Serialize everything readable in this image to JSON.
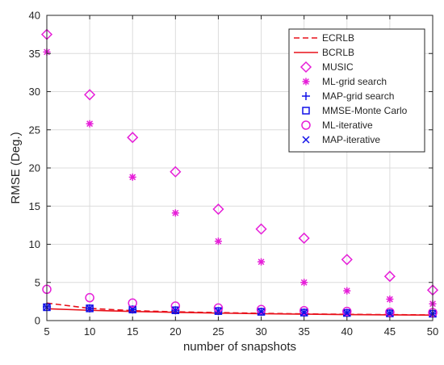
{
  "chart_data": {
    "type": "line",
    "title": "",
    "xlabel": "number of snapshots",
    "ylabel": "RMSE (Deg.)",
    "xlim": [
      5,
      50
    ],
    "ylim": [
      0,
      40
    ],
    "xticks": [
      5,
      10,
      15,
      20,
      25,
      30,
      35,
      40,
      45,
      50
    ],
    "yticks": [
      0,
      5,
      10,
      15,
      20,
      25,
      30,
      35,
      40
    ],
    "grid": true,
    "legend_position": "top-right",
    "x": [
      5,
      10,
      15,
      20,
      25,
      30,
      35,
      40,
      45,
      50
    ],
    "series": [
      {
        "name": "ECRLB",
        "kind": "line",
        "dash": "dashed",
        "color": "#e8101a",
        "values": [
          2.3,
          1.6,
          1.3,
          1.15,
          1.05,
          0.95,
          0.88,
          0.82,
          0.78,
          0.74
        ]
      },
      {
        "name": "BCRLB",
        "kind": "line",
        "dash": "solid",
        "color": "#e8101a",
        "values": [
          1.55,
          1.35,
          1.2,
          1.08,
          0.98,
          0.9,
          0.84,
          0.79,
          0.75,
          0.72
        ]
      },
      {
        "name": "MUSIC",
        "kind": "marker",
        "marker": "diamond",
        "color": "#e61ed8",
        "values": [
          37.5,
          29.6,
          24.0,
          19.5,
          14.6,
          12.0,
          10.8,
          8.0,
          5.8,
          4.0
        ]
      },
      {
        "name": "ML-grid search",
        "kind": "marker",
        "marker": "asterisk",
        "color": "#e61ed8",
        "values": [
          35.2,
          25.8,
          18.8,
          14.1,
          10.4,
          7.7,
          5.0,
          3.9,
          2.8,
          2.2
        ]
      },
      {
        "name": "MAP-grid search",
        "kind": "marker",
        "marker": "plus",
        "color": "#1010e8",
        "values": [
          1.8,
          1.6,
          1.45,
          1.35,
          1.25,
          1.15,
          1.05,
          1.0,
          0.95,
          0.9
        ]
      },
      {
        "name": "MMSE-Monte Carlo",
        "kind": "marker",
        "marker": "square",
        "color": "#1010e8",
        "values": [
          1.75,
          1.6,
          1.45,
          1.35,
          1.25,
          1.15,
          1.05,
          1.0,
          0.95,
          0.9
        ]
      },
      {
        "name": "ML-iterative",
        "kind": "marker",
        "marker": "circle",
        "color": "#e61ed8",
        "values": [
          4.1,
          3.0,
          2.3,
          1.9,
          1.65,
          1.45,
          1.3,
          1.2,
          1.1,
          1.05
        ]
      },
      {
        "name": "MAP-iterative",
        "kind": "marker",
        "marker": "x",
        "color": "#1010e8",
        "values": [
          1.75,
          1.6,
          1.45,
          1.35,
          1.25,
          1.15,
          1.05,
          1.0,
          0.95,
          0.9
        ]
      }
    ]
  }
}
